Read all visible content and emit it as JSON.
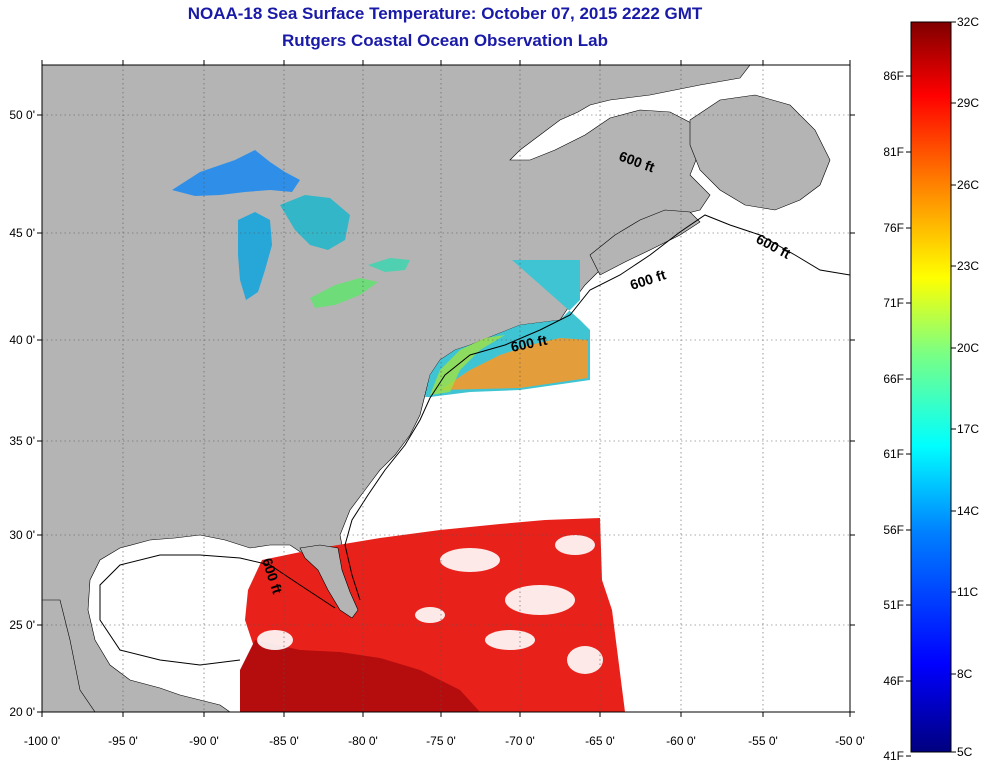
{
  "title": {
    "line1": "NOAA-18 Sea Surface Temperature:  October 07, 2015 2222 GMT",
    "line2": "Rutgers Coastal Ocean Observation Lab"
  },
  "map": {
    "lon_ticks": [
      "-100 0'",
      "-95 0'",
      "-90 0'",
      "-85 0'",
      "-80 0'",
      "-75 0'",
      "-70 0'",
      "-65 0'",
      "-60 0'",
      "-55 0'",
      "-50 0'"
    ],
    "lat_ticks": [
      "50 0'",
      "45 0'",
      "40 0'",
      "35 0'",
      "30 0'",
      "25 0'",
      "20 0'"
    ],
    "contour_label": "600 ft",
    "land_color": "#b4b4b4",
    "ocean_color": "#ffffff"
  },
  "colorbar": {
    "celsius": [
      "32C",
      "29C",
      "26C",
      "23C",
      "20C",
      "17C",
      "14C",
      "11C",
      "8C",
      "5C"
    ],
    "fahrenheit": [
      "86F",
      "81F",
      "76F",
      "71F",
      "66F",
      "61F",
      "56F",
      "51F",
      "46F",
      "41F"
    ],
    "stops": [
      "#00007f",
      "#0000ff",
      "#007fff",
      "#00ffff",
      "#7fff7f",
      "#ffff00",
      "#ff7f00",
      "#ff0000",
      "#7f0000"
    ]
  }
}
